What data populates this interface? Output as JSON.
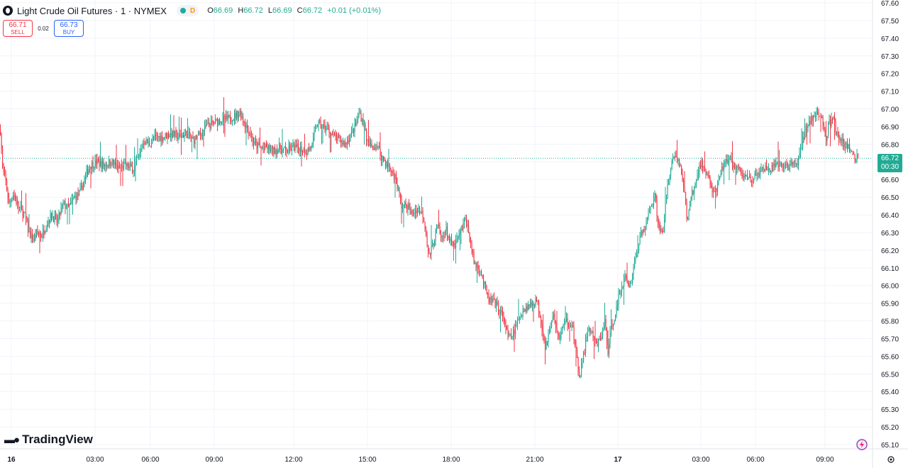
{
  "header": {
    "title": "Light Crude Oil Futures · 1 · NYMEX",
    "status_badge": "D",
    "ohlc": {
      "o_label": "O",
      "o_value": "66.69",
      "h_label": "H",
      "h_value": "66.72",
      "l_label": "L",
      "l_value": "66.69",
      "c_label": "C",
      "c_value": "66.72",
      "change": "+0.01 (+0.01%)"
    }
  },
  "trade": {
    "sell_price": "66.71",
    "sell_label": "SELL",
    "spread": "0.02",
    "buy_price": "66.73",
    "buy_label": "BUY"
  },
  "logo": {
    "text": "TradingView",
    "icon": "tradingview-logo-icon"
  },
  "last_price": {
    "value": "66.72",
    "countdown": "00:30"
  },
  "icons": {
    "settings": "gear-icon",
    "alert": "lightning-icon"
  },
  "colors": {
    "up": "#22ab94",
    "down": "#f23645",
    "grid": "#f0f3fa",
    "axis_text": "#131722"
  },
  "chart_data": {
    "type": "candlestick",
    "ylim": [
      65.1,
      67.6
    ],
    "y_ticks": [
      "65.10",
      "65.20",
      "65.30",
      "65.40",
      "65.50",
      "65.60",
      "65.70",
      "65.80",
      "65.90",
      "66.00",
      "66.10",
      "66.20",
      "66.30",
      "66.40",
      "66.50",
      "66.60",
      "66.70",
      "66.80",
      "66.90",
      "67.00",
      "67.10",
      "67.20",
      "67.30",
      "67.40",
      "67.50",
      "67.60"
    ],
    "x_ticks": [
      {
        "label": "16",
        "bold": true
      },
      {
        "label": "03:00"
      },
      {
        "label": "06:00"
      },
      {
        "label": "09:00"
      },
      {
        "label": "12:00"
      },
      {
        "label": "15:00"
      },
      {
        "label": "18:00"
      },
      {
        "label": "21:00"
      },
      {
        "label": "17",
        "bold": true
      },
      {
        "label": "03:00"
      },
      {
        "label": "06:00"
      },
      {
        "label": "09:00"
      }
    ],
    "last_price": 66.72,
    "grid": true,
    "path": [
      [
        0,
        66.88
      ],
      [
        3,
        66.66
      ],
      [
        8,
        66.58
      ],
      [
        12,
        66.46
      ],
      [
        18,
        66.52
      ],
      [
        26,
        66.44
      ],
      [
        34,
        66.4
      ],
      [
        40,
        66.3
      ],
      [
        46,
        66.26
      ],
      [
        52,
        66.3
      ],
      [
        58,
        66.28
      ],
      [
        66,
        66.36
      ],
      [
        72,
        66.4
      ],
      [
        80,
        66.36
      ],
      [
        88,
        66.46
      ],
      [
        96,
        66.44
      ],
      [
        104,
        66.5
      ],
      [
        112,
        66.52
      ],
      [
        120,
        66.62
      ],
      [
        126,
        66.68
      ],
      [
        136,
        66.7
      ],
      [
        146,
        66.68
      ],
      [
        156,
        66.7
      ],
      [
        166,
        66.66
      ],
      [
        176,
        66.68
      ],
      [
        188,
        66.66
      ],
      [
        196,
        66.74
      ],
      [
        202,
        66.82
      ],
      [
        210,
        66.8
      ],
      [
        218,
        66.84
      ],
      [
        228,
        66.84
      ],
      [
        240,
        66.86
      ],
      [
        252,
        66.84
      ],
      [
        262,
        66.86
      ],
      [
        272,
        66.82
      ],
      [
        282,
        66.86
      ],
      [
        290,
        66.9
      ],
      [
        300,
        66.92
      ],
      [
        310,
        66.94
      ],
      [
        320,
        66.94
      ],
      [
        330,
        66.96
      ],
      [
        338,
        66.98
      ],
      [
        344,
        66.92
      ],
      [
        350,
        66.88
      ],
      [
        358,
        66.8
      ],
      [
        366,
        66.78
      ],
      [
        376,
        66.78
      ],
      [
        384,
        66.76
      ],
      [
        394,
        66.78
      ],
      [
        402,
        66.76
      ],
      [
        412,
        66.78
      ],
      [
        422,
        66.78
      ],
      [
        432,
        66.76
      ],
      [
        440,
        66.8
      ],
      [
        446,
        66.92
      ],
      [
        454,
        66.9
      ],
      [
        462,
        66.88
      ],
      [
        470,
        66.84
      ],
      [
        478,
        66.82
      ],
      [
        486,
        66.8
      ],
      [
        494,
        66.86
      ],
      [
        500,
        66.9
      ],
      [
        506,
        66.98
      ],
      [
        512,
        66.92
      ],
      [
        518,
        66.8
      ],
      [
        524,
        66.78
      ],
      [
        530,
        66.8
      ],
      [
        536,
        66.74
      ],
      [
        542,
        66.7
      ],
      [
        548,
        66.66
      ],
      [
        556,
        66.62
      ],
      [
        562,
        66.52
      ],
      [
        566,
        66.44
      ],
      [
        572,
        66.46
      ],
      [
        580,
        66.4
      ],
      [
        588,
        66.44
      ],
      [
        596,
        66.4
      ],
      [
        600,
        66.3
      ],
      [
        604,
        66.16
      ],
      [
        610,
        66.24
      ],
      [
        616,
        66.34
      ],
      [
        622,
        66.26
      ],
      [
        628,
        66.32
      ],
      [
        634,
        66.24
      ],
      [
        640,
        66.22
      ],
      [
        648,
        66.3
      ],
      [
        656,
        66.38
      ],
      [
        662,
        66.26
      ],
      [
        668,
        66.12
      ],
      [
        676,
        66.1
      ],
      [
        682,
        66.0
      ],
      [
        688,
        65.92
      ],
      [
        696,
        65.9
      ],
      [
        704,
        65.86
      ],
      [
        710,
        65.8
      ],
      [
        716,
        65.7
      ],
      [
        722,
        65.72
      ],
      [
        730,
        65.8
      ],
      [
        736,
        65.86
      ],
      [
        742,
        65.88
      ],
      [
        750,
        65.9
      ],
      [
        756,
        65.92
      ],
      [
        762,
        65.8
      ],
      [
        768,
        65.66
      ],
      [
        774,
        65.74
      ],
      [
        780,
        65.84
      ],
      [
        786,
        65.7
      ],
      [
        792,
        65.76
      ],
      [
        798,
        65.8
      ],
      [
        806,
        65.78
      ],
      [
        812,
        65.6
      ],
      [
        816,
        65.48
      ],
      [
        822,
        65.6
      ],
      [
        828,
        65.76
      ],
      [
        834,
        65.72
      ],
      [
        840,
        65.66
      ],
      [
        846,
        65.7
      ],
      [
        852,
        65.8
      ],
      [
        856,
        65.62
      ],
      [
        862,
        65.78
      ],
      [
        868,
        65.86
      ],
      [
        874,
        65.98
      ],
      [
        880,
        66.04
      ],
      [
        888,
        66.0
      ],
      [
        894,
        66.14
      ],
      [
        900,
        66.24
      ],
      [
        904,
        66.3
      ],
      [
        910,
        66.34
      ],
      [
        916,
        66.44
      ],
      [
        922,
        66.52
      ],
      [
        928,
        66.34
      ],
      [
        934,
        66.28
      ],
      [
        940,
        66.56
      ],
      [
        946,
        66.7
      ],
      [
        952,
        66.74
      ],
      [
        958,
        66.68
      ],
      [
        964,
        66.54
      ],
      [
        968,
        66.36
      ],
      [
        974,
        66.52
      ],
      [
        980,
        66.56
      ],
      [
        986,
        66.7
      ],
      [
        992,
        66.66
      ],
      [
        998,
        66.62
      ],
      [
        1004,
        66.52
      ],
      [
        1010,
        66.54
      ],
      [
        1016,
        66.64
      ],
      [
        1022,
        66.72
      ],
      [
        1030,
        66.7
      ],
      [
        1038,
        66.66
      ],
      [
        1046,
        66.62
      ],
      [
        1054,
        66.62
      ],
      [
        1062,
        66.6
      ],
      [
        1070,
        66.64
      ],
      [
        1078,
        66.66
      ],
      [
        1088,
        66.66
      ],
      [
        1096,
        66.68
      ],
      [
        1106,
        66.68
      ],
      [
        1116,
        66.68
      ],
      [
        1124,
        66.7
      ],
      [
        1130,
        66.8
      ],
      [
        1136,
        66.9
      ],
      [
        1142,
        66.94
      ],
      [
        1150,
        66.96
      ],
      [
        1158,
        66.96
      ],
      [
        1164,
        66.82
      ],
      [
        1168,
        66.92
      ],
      [
        1174,
        66.94
      ],
      [
        1180,
        66.84
      ],
      [
        1188,
        66.8
      ],
      [
        1196,
        66.78
      ],
      [
        1204,
        66.72
      ],
      [
        1210,
        66.72
      ]
    ]
  }
}
